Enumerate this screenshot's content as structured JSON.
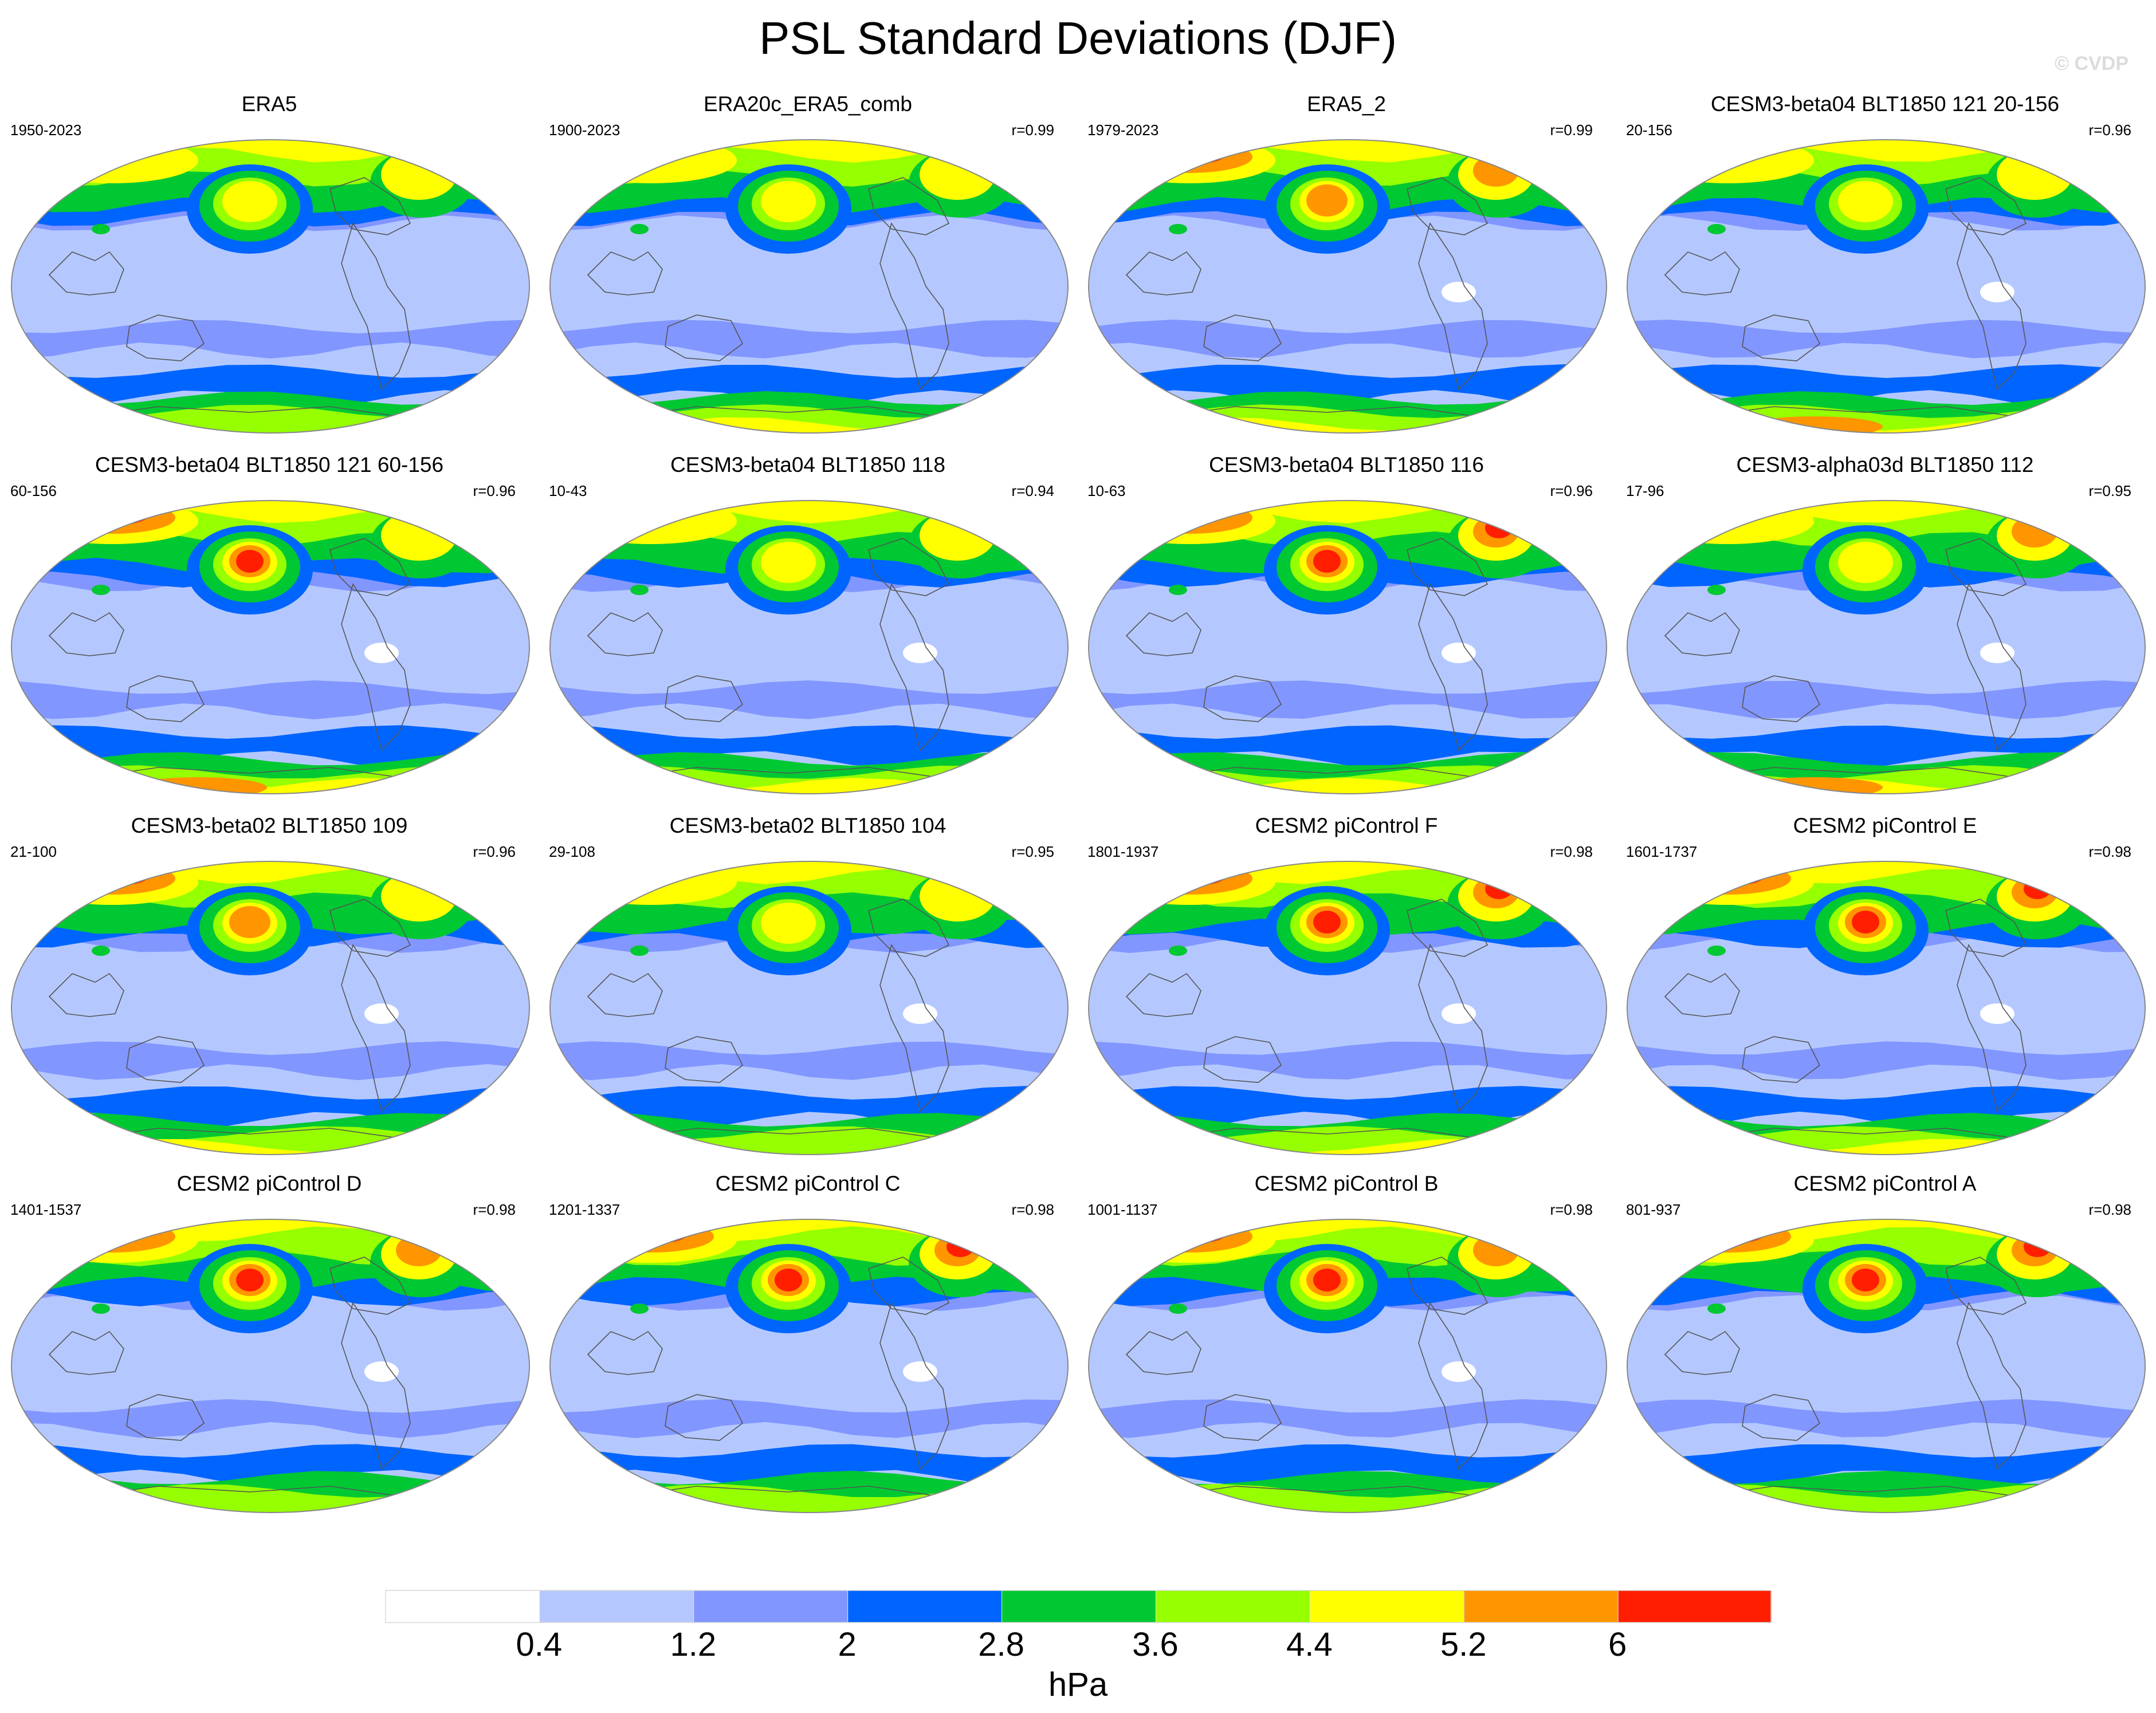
{
  "page": {
    "title": "PSL Standard Deviations (DJF)",
    "watermark": "© CVDP"
  },
  "palette": [
    "#ffffff",
    "#b4c8ff",
    "#8296ff",
    "#0064ff",
    "#00c832",
    "#96ff00",
    "#ffff00",
    "#ff9600",
    "#ff1e00"
  ],
  "chart_data": {
    "type": "heatmap",
    "description_units": "hPa",
    "panels": [
      {
        "title": "ERA5",
        "years": "1950-2023",
        "r": "",
        "nh": {
          "aleutian": 6,
          "icelandic": 6,
          "eurasia": 5
        },
        "sh_max": 5,
        "white": false
      },
      {
        "title": "ERA20c_ERA5_comb",
        "years": "1900-2023",
        "r": "r=0.99",
        "nh": {
          "aleutian": 6,
          "icelandic": 6,
          "eurasia": 6
        },
        "sh_max": 6,
        "white": false
      },
      {
        "title": "ERA5_2",
        "years": "1979-2023",
        "r": "r=0.99",
        "nh": {
          "aleutian": 7,
          "icelandic": 7,
          "eurasia": 8
        },
        "sh_max": 6,
        "white": true
      },
      {
        "title": "CESM3-beta04 BLT1850 121 20-156",
        "years": "20-156",
        "r": "r=0.96",
        "nh": {
          "aleutian": 6,
          "icelandic": 6,
          "eurasia": 6
        },
        "sh_max": 7,
        "white": true
      },
      {
        "title": "CESM3-beta04 BLT1850 121 60-156",
        "years": "60-156",
        "r": "r=0.96",
        "nh": {
          "aleutian": 8,
          "icelandic": 6,
          "eurasia": 8
        },
        "sh_max": 7,
        "white": true
      },
      {
        "title": "CESM3-beta04 BLT1850 118",
        "years": "10-43",
        "r": "r=0.94",
        "nh": {
          "aleutian": 6,
          "icelandic": 6,
          "eurasia": 6
        },
        "sh_max": 6,
        "white": true
      },
      {
        "title": "CESM3-beta04 BLT1850 116",
        "years": "10-63",
        "r": "r=0.96",
        "nh": {
          "aleutian": 8,
          "icelandic": 8,
          "eurasia": 7
        },
        "sh_max": 6,
        "white": true
      },
      {
        "title": "CESM3-alpha03d BLT1850 112",
        "years": "17-96",
        "r": "r=0.95",
        "nh": {
          "aleutian": 6,
          "icelandic": 7,
          "eurasia": 6
        },
        "sh_max": 7,
        "white": true
      },
      {
        "title": "CESM3-beta02 BLT1850 109",
        "years": "21-100",
        "r": "r=0.96",
        "nh": {
          "aleutian": 7,
          "icelandic": 6,
          "eurasia": 8
        },
        "sh_max": 6,
        "white": true
      },
      {
        "title": "CESM3-beta02 BLT1850 104",
        "years": "29-108",
        "r": "r=0.95",
        "nh": {
          "aleutian": 6,
          "icelandic": 6,
          "eurasia": 6
        },
        "sh_max": 5,
        "white": true
      },
      {
        "title": "CESM2 piControl F",
        "years": "1801-1937",
        "r": "r=0.98",
        "nh": {
          "aleutian": 8,
          "icelandic": 8,
          "eurasia": 8
        },
        "sh_max": 6,
        "white": true
      },
      {
        "title": "CESM2 piControl E",
        "years": "1601-1737",
        "r": "r=0.98",
        "nh": {
          "aleutian": 8,
          "icelandic": 8,
          "eurasia": 8
        },
        "sh_max": 6,
        "white": true
      },
      {
        "title": "CESM2 piControl D",
        "years": "1401-1537",
        "r": "r=0.98",
        "nh": {
          "aleutian": 8,
          "icelandic": 7,
          "eurasia": 7
        },
        "sh_max": 5,
        "white": true
      },
      {
        "title": "CESM2 piControl C",
        "years": "1201-1337",
        "r": "r=0.98",
        "nh": {
          "aleutian": 8,
          "icelandic": 8,
          "eurasia": 8
        },
        "sh_max": 5,
        "white": true
      },
      {
        "title": "CESM2 piControl B",
        "years": "1001-1137",
        "r": "r=0.98",
        "nh": {
          "aleutian": 8,
          "icelandic": 7,
          "eurasia": 8
        },
        "sh_max": 5,
        "white": true
      },
      {
        "title": "CESM2 piControl A",
        "years": "801-937",
        "r": "r=0.98",
        "nh": {
          "aleutian": 8,
          "icelandic": 8,
          "eurasia": 8
        },
        "sh_max": 5,
        "white": false
      }
    ],
    "colorbar": {
      "levels": [
        "0.4",
        "1.2",
        "2",
        "2.8",
        "3.6",
        "4.4",
        "5.2",
        "6"
      ],
      "unit": "hPa"
    }
  }
}
